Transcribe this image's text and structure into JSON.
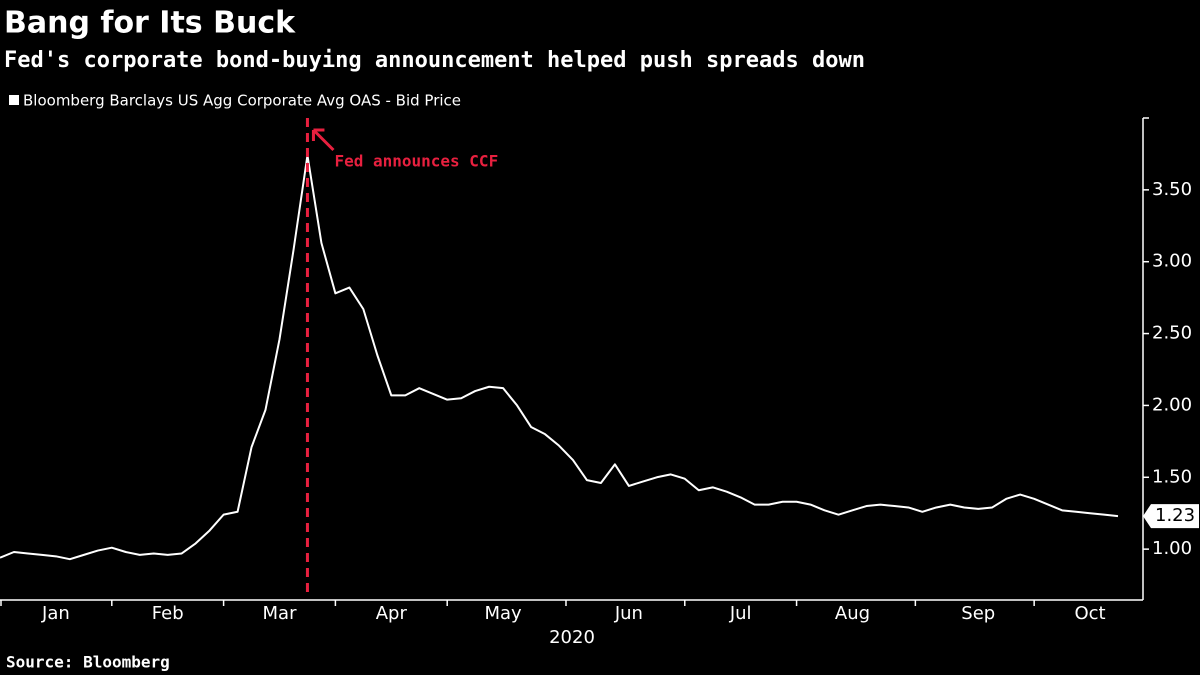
{
  "chart_data": {
    "type": "line",
    "title": "Bang for Its Buck",
    "subtitle": "Fed's corporate bond-buying announcement helped push spreads down",
    "x_label": "2020",
    "source": "Source: Bloomberg",
    "annotation": "Fed announces CCF",
    "annotation_color": "#e8203f",
    "categories": [
      null,
      null,
      null,
      null,
      "Jan",
      null,
      null,
      null,
      null,
      null,
      null,
      null,
      "Feb",
      null,
      null,
      null,
      null,
      null,
      null,
      null,
      "Mar",
      null,
      null,
      null,
      null,
      null,
      null,
      null,
      "Apr",
      null,
      null,
      null,
      null,
      null,
      null,
      null,
      "May",
      null,
      null,
      null,
      null,
      null,
      null,
      null,
      null,
      "Jun",
      null,
      null,
      null,
      null,
      null,
      null,
      null,
      "Jul",
      null,
      null,
      null,
      null,
      null,
      null,
      null,
      "Aug",
      null,
      null,
      null,
      null,
      null,
      null,
      null,
      null,
      "Sep",
      null,
      null,
      null,
      null,
      null,
      null,
      null,
      "Oct",
      null,
      null
    ],
    "series": [
      {
        "name": "Bloomberg Barclays US Agg Corporate Avg OAS - Bid Price",
        "color": "#ffffff",
        "values": [
          0.94,
          0.98,
          0.97,
          0.96,
          0.95,
          0.93,
          0.96,
          0.99,
          1.01,
          0.98,
          0.96,
          0.97,
          0.96,
          0.97,
          1.04,
          1.13,
          1.24,
          1.26,
          1.71,
          1.97,
          2.46,
          3.08,
          3.74,
          3.13,
          2.78,
          2.82,
          2.67,
          2.35,
          2.07,
          2.07,
          2.12,
          2.08,
          2.04,
          2.05,
          2.1,
          2.13,
          2.12,
          2.0,
          1.85,
          1.8,
          1.72,
          1.62,
          1.48,
          1.46,
          1.59,
          1.44,
          1.47,
          1.5,
          1.52,
          1.49,
          1.41,
          1.43,
          1.4,
          1.36,
          1.31,
          1.31,
          1.33,
          1.33,
          1.31,
          1.27,
          1.24,
          1.27,
          1.3,
          1.31,
          1.3,
          1.29,
          1.26,
          1.29,
          1.31,
          1.29,
          1.28,
          1.29,
          1.35,
          1.38,
          1.35,
          1.31,
          1.27,
          1.26,
          1.25,
          1.24,
          1.23
        ]
      }
    ],
    "ylim": [
      0.66,
      4.0
    ],
    "yticks": [
      {
        "value": 1,
        "label": "1.00"
      },
      {
        "value": 1.5,
        "label": "1.50"
      },
      {
        "value": 2,
        "label": "2.00"
      },
      {
        "value": 2.5,
        "label": "2.50"
      },
      {
        "value": 3,
        "label": "3.00"
      },
      {
        "value": 3.5,
        "label": "3.50"
      }
    ],
    "grid": false
  }
}
